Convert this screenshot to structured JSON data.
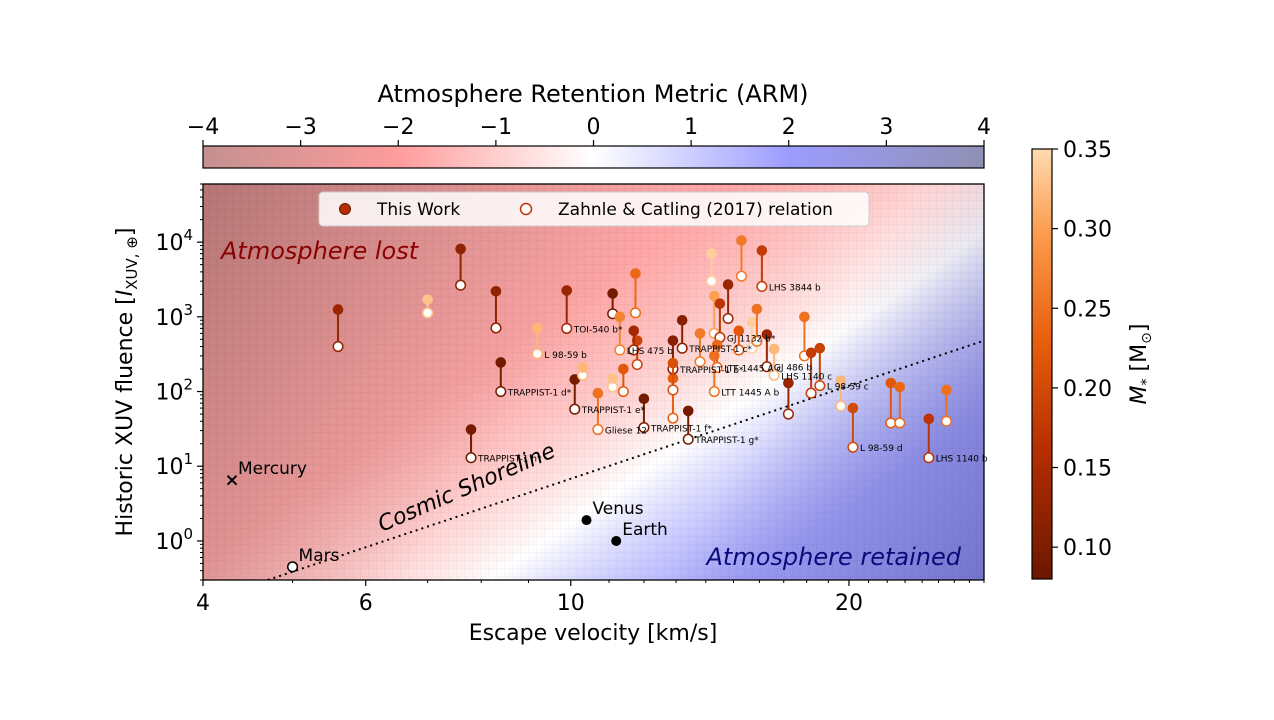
{
  "chart_data": {
    "type": "scatter",
    "xlabel": "Escape velocity [km/s]",
    "ylabel_main": "Historic XUV fluence [",
    "ylabel_var": "I",
    "ylabel_sub": "XUV, ⊕",
    "ylabel_end": "]",
    "x_scale": "log",
    "y_scale": "log",
    "xlim": [
      4,
      28
    ],
    "ylim": [
      0.3,
      60000
    ],
    "x_ticks": [
      {
        "v": 4,
        "label": "4"
      },
      {
        "v": 6,
        "label": "6"
      },
      {
        "v": 10,
        "label": "10"
      },
      {
        "v": 20,
        "label": "20"
      }
    ],
    "y_ticks": [
      {
        "v": 1,
        "base": "10",
        "exp": "0"
      },
      {
        "v": 10,
        "base": "10",
        "exp": "1"
      },
      {
        "v": 100,
        "base": "10",
        "exp": "2"
      },
      {
        "v": 1000,
        "base": "10",
        "exp": "3"
      },
      {
        "v": 10000,
        "base": "10",
        "exp": "4"
      }
    ],
    "arm_colorbar": {
      "title": "Atmosphere Retention Metric (ARM)",
      "range": [
        -4,
        4
      ],
      "ticks": [
        "−4",
        "−3",
        "−2",
        "−1",
        "0",
        "1",
        "2",
        "3",
        "4"
      ],
      "colors": [
        "#c49090",
        "#ff9c9c",
        "#ffffff",
        "#9c9cff",
        "#9090b4"
      ]
    },
    "mass_colorbar": {
      "label_var": "M",
      "label_sub": "*",
      "label_unit": " [M",
      "label_unit_sub": "⊙",
      "label_end": "]",
      "range": [
        0.08,
        0.35
      ],
      "ticks": [
        "0.10",
        "0.15",
        "0.20",
        "0.25",
        "0.30",
        "0.35"
      ],
      "tick_values": [
        0.1,
        0.15,
        0.2,
        0.25,
        0.3,
        0.35
      ]
    },
    "shoreline": {
      "label": "Cosmic Shoreline",
      "points": [
        [
          4.7,
          0.3
        ],
        [
          28,
          480
        ]
      ]
    },
    "region_labels": {
      "lost": "Atmosphere lost",
      "retained": "Atmosphere retained"
    },
    "legend": {
      "this_work": "This Work",
      "zahnle": "Zahnle & Catling (2017) relation",
      "placement": "top-center"
    },
    "solar_system": [
      {
        "name": "Mercury",
        "x": 4.3,
        "y": 6.5,
        "marker": "x"
      },
      {
        "name": "Mars",
        "x": 5.0,
        "y": 0.45,
        "marker": "open"
      },
      {
        "name": "Venus",
        "x": 10.4,
        "y": 1.9,
        "marker": "filled"
      },
      {
        "name": "Earth",
        "x": 11.2,
        "y": 1.0,
        "marker": "filled"
      }
    ],
    "planets": [
      {
        "x": 5.6,
        "y1": 1250,
        "y2": 400,
        "m": 0.13,
        "label": ""
      },
      {
        "x": 7.0,
        "y1": 1700,
        "y2": 1130,
        "m": 0.33,
        "label": ""
      },
      {
        "x": 7.6,
        "y1": 8100,
        "y2": 2650,
        "m": 0.12,
        "label": ""
      },
      {
        "x": 7.8,
        "y1": 31,
        "y2": 13,
        "m": 0.09,
        "label": "TRAPPIST-1 h*"
      },
      {
        "x": 8.3,
        "y1": 2200,
        "y2": 710,
        "m": 0.12,
        "label": ""
      },
      {
        "x": 8.4,
        "y1": 245,
        "y2": 100,
        "m": 0.09,
        "label": "TRAPPIST-1 d*"
      },
      {
        "x": 9.2,
        "y1": 700,
        "y2": 320,
        "m": 0.32,
        "label": "L 98-59 b"
      },
      {
        "x": 9.9,
        "y1": 2250,
        "y2": 700,
        "m": 0.13,
        "label": "TOI-540 b*"
      },
      {
        "x": 10.1,
        "y1": 145,
        "y2": 58,
        "m": 0.09,
        "label": "TRAPPIST-1 e*"
      },
      {
        "x": 10.3,
        "y1": 210,
        "y2": 165,
        "m": 0.32,
        "label": ""
      },
      {
        "x": 10.7,
        "y1": 95,
        "y2": 31,
        "m": 0.25,
        "label": "Gliese 12"
      },
      {
        "x": 11.1,
        "y1": 2050,
        "y2": 1100,
        "m": 0.09,
        "label": ""
      },
      {
        "x": 11.3,
        "y1": 1000,
        "y2": 360,
        "m": 0.27,
        "label": "LHS 475 b"
      },
      {
        "x": 11.1,
        "y1": 150,
        "y2": 115,
        "m": 0.33,
        "label": ""
      },
      {
        "x": 11.4,
        "y1": 200,
        "y2": 100,
        "m": 0.22,
        "label": ""
      },
      {
        "x": 11.75,
        "y1": 3800,
        "y2": 1130,
        "m": 0.24,
        "label": ""
      },
      {
        "x": 11.8,
        "y1": 480,
        "y2": 230,
        "m": 0.19,
        "label": ""
      },
      {
        "x": 11.7,
        "y1": 650,
        "y2": 360,
        "m": 0.14,
        "label": ""
      },
      {
        "x": 12.0,
        "y1": 80,
        "y2": 33,
        "m": 0.09,
        "label": "TRAPPIST-1 f*"
      },
      {
        "x": 12.9,
        "y1": 150,
        "y2": 44,
        "m": 0.23,
        "label": ""
      },
      {
        "x": 12.9,
        "y1": 480,
        "y2": 200,
        "m": 0.11,
        "label": "TRAPPIST-1 b*"
      },
      {
        "x": 12.9,
        "y1": 240,
        "y2": 105,
        "m": 0.21,
        "label": ""
      },
      {
        "x": 13.2,
        "y1": 900,
        "y2": 380,
        "m": 0.11,
        "label": "TRAPPIST-1 c*"
      },
      {
        "x": 13.4,
        "y1": 55,
        "y2": 23,
        "m": 0.09,
        "label": "TRAPPIST-1 g*"
      },
      {
        "x": 13.8,
        "y1": 600,
        "y2": 250,
        "m": 0.26,
        "label": ""
      },
      {
        "x": 14.2,
        "y1": 7000,
        "y2": 3000,
        "m": 0.34,
        "label": ""
      },
      {
        "x": 14.3,
        "y1": 1900,
        "y2": 600,
        "m": 0.3,
        "label": ""
      },
      {
        "x": 14.5,
        "y1": 1500,
        "y2": 530,
        "m": 0.17,
        "label": "GJ 1132 b*"
      },
      {
        "x": 14.3,
        "y1": 300,
        "y2": 100,
        "m": 0.25,
        "label": "LTT 1445 A b"
      },
      {
        "x": 14.4,
        "y1": 420,
        "y2": 210,
        "m": 0.24,
        "label": "LTT 1445 A c"
      },
      {
        "x": 14.8,
        "y1": 2700,
        "y2": 950,
        "m": 0.13,
        "label": ""
      },
      {
        "x": 15.3,
        "y1": 10500,
        "y2": 3500,
        "m": 0.26,
        "label": ""
      },
      {
        "x": 15.2,
        "y1": 650,
        "y2": 360,
        "m": 0.22,
        "label": ""
      },
      {
        "x": 15.7,
        "y1": 850,
        "y2": 380,
        "m": 0.34,
        "label": ""
      },
      {
        "x": 15.9,
        "y1": 1270,
        "y2": 470,
        "m": 0.25,
        "label": ""
      },
      {
        "x": 16.1,
        "y1": 7700,
        "y2": 2550,
        "m": 0.18,
        "label": "LHS 3844 b"
      },
      {
        "x": 16.3,
        "y1": 580,
        "y2": 215,
        "m": 0.13,
        "label": "GJ 486 b"
      },
      {
        "x": 16.6,
        "y1": 370,
        "y2": 165,
        "m": 0.32,
        "label": "LHS 1140 c"
      },
      {
        "x": 17.2,
        "y1": 130,
        "y2": 50,
        "m": 0.13,
        "label": ""
      },
      {
        "x": 17.9,
        "y1": 1000,
        "y2": 300,
        "m": 0.25,
        "label": ""
      },
      {
        "x": 18.2,
        "y1": 330,
        "y2": 95,
        "m": 0.18,
        "label": ""
      },
      {
        "x": 18.6,
        "y1": 380,
        "y2": 120,
        "m": 0.19,
        "label": "L 98-59 c"
      },
      {
        "x": 19.6,
        "y1": 140,
        "y2": 64,
        "m": 0.32,
        "label": ""
      },
      {
        "x": 20.2,
        "y1": 60,
        "y2": 18,
        "m": 0.2,
        "label": "L 98-59 d"
      },
      {
        "x": 22.2,
        "y1": 130,
        "y2": 38,
        "m": 0.22,
        "label": ""
      },
      {
        "x": 22.7,
        "y1": 115,
        "y2": 38,
        "m": 0.24,
        "label": ""
      },
      {
        "x": 24.4,
        "y1": 43,
        "y2": 13,
        "m": 0.17,
        "label": "LHS 1140 b"
      },
      {
        "x": 25.5,
        "y1": 105,
        "y2": 40,
        "m": 0.25,
        "label": ""
      }
    ]
  }
}
